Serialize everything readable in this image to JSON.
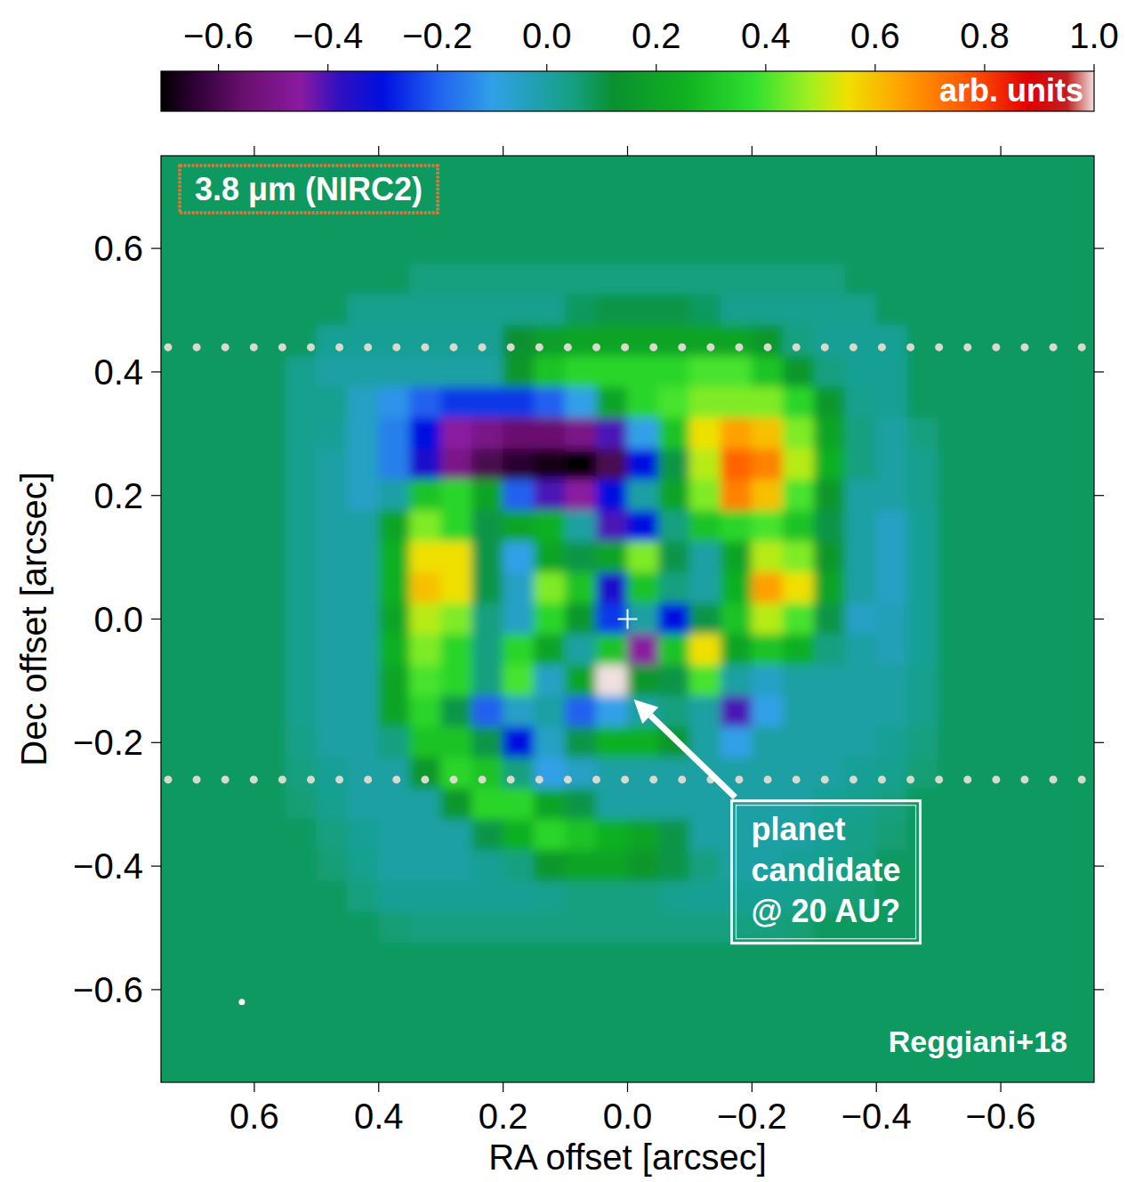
{
  "chart_data": {
    "type": "heatmap",
    "x_label": "RA offset [arcsec]",
    "y_label": "Dec offset [arcsec]",
    "xlim": [
      0.75,
      -0.75
    ],
    "ylim": [
      -0.75,
      0.75
    ],
    "xticks": [
      0.6,
      0.4,
      0.2,
      {
        "value": 0,
        "label": "0.0"
      },
      {
        "value": -0.2,
        "label": "−0.2"
      },
      {
        "value": -0.4,
        "label": "−0.4"
      },
      {
        "value": -0.6,
        "label": "−0.6"
      }
    ],
    "yticks": [
      {
        "value": -0.6,
        "label": "−0.6"
      },
      {
        "value": -0.4,
        "label": "−0.4"
      },
      {
        "value": -0.2,
        "label": "−0.2"
      },
      {
        "value": 0,
        "label": "0.0"
      },
      0.2,
      0.4,
      0.6
    ],
    "colorbar": {
      "label": "arb. units",
      "range": [
        -0.705,
        1.0
      ],
      "ticks": [
        {
          "value": -0.6,
          "label": "−0.6"
        },
        {
          "value": -0.4,
          "label": "−0.4"
        },
        {
          "value": -0.2,
          "label": "−0.2"
        },
        {
          "value": 0,
          "label": "0.0"
        },
        0.2,
        0.4,
        0.6,
        0.8,
        {
          "value": 1,
          "label": "1.0"
        }
      ]
    },
    "heatmap": {
      "x": [
        0.725,
        0.675,
        0.625,
        0.575,
        0.525,
        0.475,
        0.425,
        0.375,
        0.325,
        0.275,
        0.225,
        0.175,
        0.125,
        0.075,
        0.025,
        -0.025,
        -0.075,
        -0.125,
        -0.175,
        -0.225,
        -0.275,
        -0.325,
        -0.375,
        -0.425,
        -0.475,
        -0.525,
        -0.575,
        -0.625,
        -0.675,
        -0.725
      ],
      "y": [
        0.75,
        0.7,
        0.65,
        0.6,
        0.55,
        0.5,
        0.45,
        0.4,
        0.35,
        0.3,
        0.25,
        0.2,
        0.15,
        0.1,
        0.05,
        0,
        -0.05,
        -0.1,
        -0.15,
        -0.2,
        -0.25,
        -0.3,
        -0.35,
        -0.4,
        -0.45,
        -0.5,
        -0.55,
        -0.6,
        -0.65,
        -0.7,
        -0.75
      ],
      "values": [
        [
          0.08,
          0.08,
          0.08,
          0.08,
          0.08,
          0.08,
          0.08,
          0.08,
          0.08,
          0.08,
          0.08,
          0.08,
          0.08,
          0.08,
          0.08,
          0.08,
          0.08,
          0.08,
          0.08,
          0.08,
          0.08,
          0.08,
          0.08,
          0.08,
          0.08,
          0.08,
          0.08,
          0.08,
          0.08,
          0.08
        ],
        [
          0.08,
          0.08,
          0.08,
          0.08,
          0.08,
          0.08,
          0.08,
          0.08,
          0.08,
          0.08,
          0.08,
          0.08,
          0.08,
          0.08,
          0.08,
          0.08,
          0.08,
          0.08,
          0.08,
          0.08,
          0.08,
          0.08,
          0.08,
          0.08,
          0.08,
          0.08,
          0.08,
          0.08,
          0.08,
          0.08
        ],
        [
          0.08,
          0.08,
          0.08,
          0.08,
          0.08,
          0.08,
          0.08,
          0.08,
          0.08,
          0.08,
          0.08,
          0.08,
          0.08,
          0.08,
          0.08,
          0.08,
          0.08,
          0.08,
          0.08,
          0.08,
          0.08,
          0.08,
          0.08,
          0.08,
          0.08,
          0.08,
          0.08,
          0.08,
          0.08,
          0.08
        ],
        [
          0.08,
          0.08,
          0.08,
          0.08,
          0.08,
          0.08,
          0.08,
          0.08,
          0.08,
          0.08,
          0.08,
          0.08,
          0.08,
          0.08,
          0.08,
          0.08,
          0.08,
          0.08,
          0.08,
          0.08,
          0.08,
          0.08,
          0.08,
          0.08,
          0.08,
          0.08,
          0.08,
          0.08,
          0.08,
          0.08
        ],
        [
          0.08,
          0.08,
          0.08,
          0.08,
          0.08,
          0.08,
          0.08,
          0.08,
          0.05,
          0.05,
          0.05,
          0.05,
          0.05,
          0.05,
          0.05,
          0.05,
          0.05,
          0.05,
          0.05,
          0.05,
          0.05,
          0.05,
          0.08,
          0.08,
          0.08,
          0.08,
          0.08,
          0.08,
          0.08,
          0.08
        ],
        [
          0.08,
          0.08,
          0.08,
          0.08,
          0.08,
          0.08,
          0.03,
          0.03,
          0.03,
          0.03,
          0.03,
          0.03,
          0.03,
          0.08,
          0.1,
          0.1,
          0.1,
          0.08,
          0.03,
          0.03,
          0.03,
          0.03,
          0.03,
          0.08,
          0.08,
          0.08,
          0.08,
          0.08,
          0.08,
          0.08
        ],
        [
          0.08,
          0.08,
          0.08,
          0.08,
          0.08,
          0.02,
          0.02,
          0.02,
          0.02,
          0.02,
          0.02,
          0.12,
          0.18,
          0.2,
          0.2,
          0.2,
          0.2,
          0.2,
          0.2,
          0.15,
          0.05,
          0.02,
          0.02,
          0.02,
          0.08,
          0.08,
          0.08,
          0.08,
          0.08,
          0.08
        ],
        [
          0.08,
          0.08,
          0.08,
          0.08,
          0.03,
          0.0,
          0.0,
          0.0,
          0.0,
          0.0,
          0.0,
          0.15,
          0.3,
          0.35,
          0.35,
          0.35,
          0.35,
          0.4,
          0.4,
          0.3,
          0.15,
          0.05,
          0.02,
          0.02,
          0.08,
          0.08,
          0.08,
          0.08,
          0.08,
          0.08
        ],
        [
          0.08,
          0.08,
          0.08,
          0.08,
          0.03,
          0.03,
          -0.05,
          -0.12,
          -0.2,
          -0.25,
          -0.25,
          -0.25,
          -0.2,
          -0.1,
          0.2,
          0.35,
          0.4,
          0.45,
          0.45,
          0.45,
          0.35,
          0.15,
          0.03,
          0.02,
          0.08,
          0.08,
          0.08,
          0.08,
          0.08,
          0.08
        ],
        [
          0.08,
          0.08,
          0.08,
          0.08,
          0.03,
          0.02,
          -0.05,
          -0.15,
          -0.3,
          -0.45,
          -0.5,
          -0.55,
          -0.55,
          -0.5,
          -0.4,
          -0.1,
          0.3,
          0.55,
          0.65,
          0.6,
          0.45,
          0.2,
          0.05,
          0.0,
          0.05,
          0.08,
          0.08,
          0.08,
          0.08,
          0.08
        ],
        [
          0.08,
          0.08,
          0.08,
          0.08,
          0.03,
          0.0,
          -0.05,
          -0.15,
          -0.35,
          -0.5,
          -0.6,
          -0.65,
          -0.68,
          -0.7,
          -0.6,
          -0.3,
          0.1,
          0.5,
          0.75,
          0.7,
          0.5,
          0.25,
          0.05,
          0.0,
          0.03,
          0.08,
          0.08,
          0.08,
          0.08,
          0.08
        ],
        [
          0.08,
          0.08,
          0.08,
          0.08,
          0.03,
          0.0,
          -0.05,
          0.0,
          0.3,
          0.35,
          0.2,
          -0.2,
          -0.4,
          -0.45,
          -0.3,
          0.0,
          0.2,
          0.45,
          0.7,
          0.6,
          0.4,
          0.15,
          0.0,
          0.0,
          0.03,
          0.08,
          0.08,
          0.08,
          0.08,
          0.08
        ],
        [
          0.08,
          0.08,
          0.08,
          0.08,
          0.03,
          0.0,
          0.0,
          0.2,
          0.45,
          0.35,
          0.1,
          0.2,
          0.25,
          0.0,
          -0.4,
          -0.3,
          0.05,
          0.3,
          0.35,
          0.4,
          0.3,
          0.1,
          0.0,
          -0.05,
          0.02,
          0.08,
          0.08,
          0.08,
          0.08,
          0.08
        ],
        [
          0.08,
          0.08,
          0.08,
          0.08,
          0.03,
          0.0,
          0.0,
          0.25,
          0.55,
          0.55,
          0.1,
          -0.1,
          0.2,
          0.1,
          0.2,
          0.45,
          0.1,
          0.0,
          0.2,
          0.5,
          0.45,
          0.15,
          0.0,
          -0.05,
          0.02,
          0.08,
          0.08,
          0.08,
          0.08,
          0.08
        ],
        [
          0.08,
          0.08,
          0.08,
          0.08,
          0.03,
          0.0,
          0.0,
          0.25,
          0.6,
          0.55,
          0.1,
          -0.05,
          0.45,
          0.3,
          -0.35,
          0.3,
          0.05,
          0.0,
          0.25,
          0.65,
          0.55,
          0.2,
          0.0,
          -0.05,
          0.02,
          0.08,
          0.08,
          0.08,
          0.08,
          0.08
        ],
        [
          0.08,
          0.08,
          0.08,
          0.08,
          0.03,
          0.0,
          0.0,
          0.2,
          0.5,
          0.45,
          0.05,
          -0.05,
          0.35,
          0.15,
          -0.25,
          0.0,
          -0.3,
          0.1,
          0.3,
          0.5,
          0.4,
          0.1,
          -0.05,
          -0.03,
          0.02,
          0.08,
          0.08,
          0.08,
          0.08,
          0.08
        ],
        [
          0.08,
          0.08,
          0.08,
          0.08,
          0.03,
          0.0,
          0.0,
          0.25,
          0.45,
          0.35,
          0.05,
          0.35,
          0.2,
          0.0,
          0.3,
          -0.45,
          0.3,
          0.55,
          0.2,
          0.3,
          0.25,
          0.05,
          0.0,
          -0.03,
          0.02,
          0.08,
          0.08,
          0.08,
          0.08,
          0.08
        ],
        [
          0.08,
          0.08,
          0.08,
          0.08,
          0.03,
          0.0,
          0.0,
          0.2,
          0.4,
          0.35,
          0.05,
          0.4,
          -0.05,
          0.2,
          1.0,
          0.15,
          0.1,
          0.4,
          0.0,
          -0.05,
          0.0,
          0.0,
          0.0,
          0.0,
          0.03,
          0.08,
          0.08,
          0.08,
          0.08,
          0.08
        ],
        [
          0.08,
          0.08,
          0.08,
          0.08,
          0.03,
          0.0,
          0.0,
          0.2,
          0.35,
          0.1,
          -0.2,
          -0.05,
          0.0,
          -0.2,
          -0.1,
          0.0,
          0.05,
          0.0,
          -0.4,
          -0.1,
          0.0,
          0.0,
          0.0,
          0.0,
          0.03,
          0.08,
          0.08,
          0.08,
          0.08,
          0.08
        ],
        [
          0.08,
          0.08,
          0.08,
          0.08,
          0.04,
          0.0,
          0.0,
          0.05,
          0.3,
          0.3,
          0.1,
          -0.3,
          -0.05,
          0.1,
          0.25,
          0.25,
          0.15,
          0.0,
          -0.1,
          0.0,
          0.0,
          0.0,
          0.0,
          0.02,
          0.05,
          0.08,
          0.08,
          0.08,
          0.08,
          0.08
        ],
        [
          0.08,
          0.08,
          0.08,
          0.08,
          0.05,
          0.02,
          0.0,
          0.0,
          0.15,
          0.35,
          0.3,
          0.05,
          -0.1,
          -0.05,
          0.0,
          0.0,
          0.0,
          0.0,
          0.0,
          0.0,
          0.0,
          0.0,
          0.02,
          0.03,
          0.06,
          0.08,
          0.08,
          0.08,
          0.08,
          0.08
        ],
        [
          0.08,
          0.08,
          0.08,
          0.08,
          0.06,
          0.03,
          0.0,
          0.0,
          0.0,
          0.15,
          0.35,
          0.35,
          0.2,
          0.1,
          0.0,
          0.0,
          0.0,
          0.0,
          0.0,
          0.0,
          0.0,
          0.02,
          0.03,
          0.05,
          0.08,
          0.08,
          0.08,
          0.08,
          0.08,
          0.08
        ],
        [
          0.08,
          0.08,
          0.08,
          0.08,
          0.08,
          0.05,
          0.02,
          0.0,
          0.0,
          0.0,
          0.1,
          0.25,
          0.35,
          0.3,
          0.25,
          0.2,
          0.1,
          0.0,
          0.0,
          0.0,
          0.0,
          0.02,
          0.04,
          0.06,
          0.08,
          0.08,
          0.08,
          0.08,
          0.08,
          0.08
        ],
        [
          0.08,
          0.08,
          0.08,
          0.08,
          0.08,
          0.06,
          0.03,
          0.0,
          0.0,
          0.0,
          0.02,
          0.05,
          0.15,
          0.2,
          0.2,
          0.15,
          0.1,
          0.05,
          0.0,
          0.0,
          0.02,
          0.03,
          0.05,
          0.08,
          0.08,
          0.08,
          0.08,
          0.08,
          0.08,
          0.08
        ],
        [
          0.08,
          0.08,
          0.08,
          0.08,
          0.08,
          0.08,
          0.05,
          0.02,
          0.02,
          0.02,
          0.02,
          0.02,
          0.03,
          0.05,
          0.05,
          0.05,
          0.03,
          0.02,
          0.02,
          0.02,
          0.03,
          0.05,
          0.06,
          0.08,
          0.08,
          0.08,
          0.08,
          0.08,
          0.08,
          0.08
        ],
        [
          0.08,
          0.08,
          0.08,
          0.08,
          0.08,
          0.08,
          0.08,
          0.06,
          0.05,
          0.05,
          0.05,
          0.05,
          0.05,
          0.05,
          0.05,
          0.05,
          0.05,
          0.05,
          0.05,
          0.05,
          0.06,
          0.08,
          0.08,
          0.08,
          0.08,
          0.08,
          0.08,
          0.08,
          0.08,
          0.08
        ],
        [
          0.08,
          0.08,
          0.08,
          0.08,
          0.08,
          0.08,
          0.08,
          0.08,
          0.08,
          0.08,
          0.08,
          0.08,
          0.08,
          0.08,
          0.08,
          0.08,
          0.08,
          0.08,
          0.08,
          0.08,
          0.08,
          0.08,
          0.08,
          0.08,
          0.08,
          0.08,
          0.08,
          0.08,
          0.08,
          0.08
        ],
        [
          0.08,
          0.08,
          0.08,
          0.08,
          0.08,
          0.08,
          0.08,
          0.08,
          0.08,
          0.08,
          0.08,
          0.08,
          0.08,
          0.08,
          0.08,
          0.08,
          0.08,
          0.08,
          0.08,
          0.08,
          0.08,
          0.08,
          0.08,
          0.08,
          0.08,
          0.08,
          0.08,
          0.08,
          0.08,
          0.08
        ],
        [
          0.08,
          0.08,
          0.08,
          0.08,
          0.08,
          0.08,
          0.08,
          0.08,
          0.08,
          0.08,
          0.08,
          0.08,
          0.08,
          0.08,
          0.08,
          0.08,
          0.08,
          0.08,
          0.08,
          0.08,
          0.08,
          0.08,
          0.08,
          0.08,
          0.08,
          0.08,
          0.08,
          0.08,
          0.08,
          0.08
        ],
        [
          0.08,
          0.08,
          0.08,
          0.08,
          0.08,
          0.08,
          0.08,
          0.08,
          0.08,
          0.08,
          0.08,
          0.08,
          0.08,
          0.08,
          0.08,
          0.08,
          0.08,
          0.08,
          0.08,
          0.08,
          0.08,
          0.08,
          0.08,
          0.08,
          0.08,
          0.08,
          0.08,
          0.08,
          0.08,
          0.08
        ],
        [
          0.08,
          0.08,
          0.08,
          0.08,
          0.08,
          0.08,
          0.08,
          0.08,
          0.08,
          0.08,
          0.08,
          0.08,
          0.08,
          0.08,
          0.08,
          0.08,
          0.08,
          0.08,
          0.08,
          0.08,
          0.08,
          0.08,
          0.08,
          0.08,
          0.08,
          0.08,
          0.08,
          0.08,
          0.08,
          0.08
        ]
      ]
    },
    "hlines": [
      {
        "y": 0.44,
        "line_style": "dotted"
      },
      {
        "y": -0.26,
        "line_style": "dotted"
      }
    ],
    "markers": [
      {
        "x": 0,
        "y": 0,
        "marker": "plus"
      },
      {
        "x": 0.62,
        "y": -0.62,
        "marker": "dot"
      }
    ],
    "annotations": [
      {
        "text": "3.8 μm (NIRC2)"
      },
      {
        "text": [
          "planet",
          "candidate",
          "@ 20 AU?"
        ],
        "x": -0.01,
        "y": -0.13
      },
      {
        "text": "Reggiani+18"
      }
    ]
  }
}
